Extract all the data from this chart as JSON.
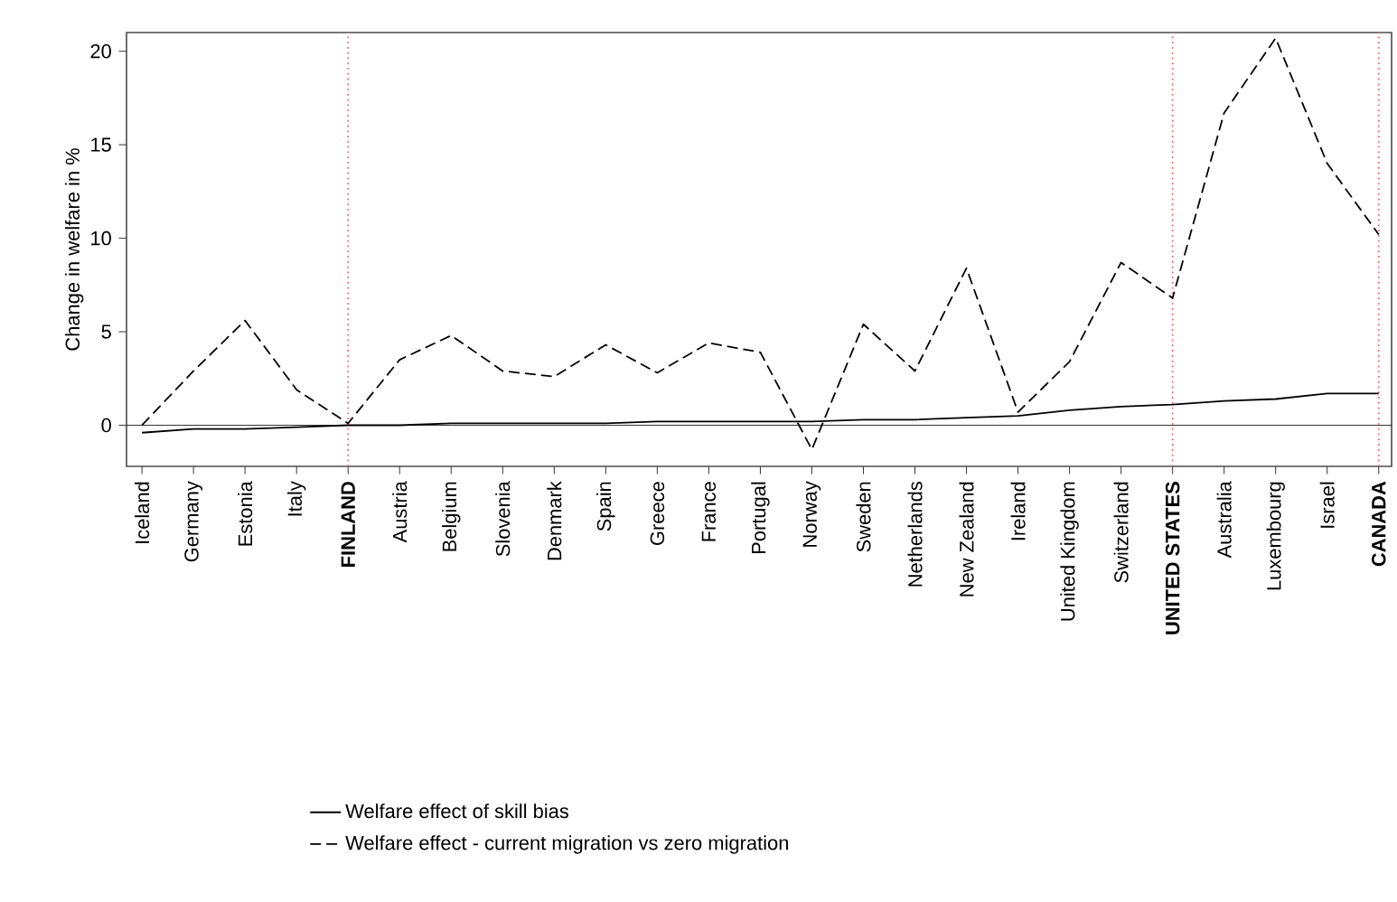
{
  "chart_data": {
    "type": "line",
    "ylabel": "Change in welfare in %",
    "categories": [
      "Iceland",
      "Germany",
      "Estonia",
      "Italy",
      "FINLAND",
      "Austria",
      "Belgium",
      "Slovenia",
      "Denmark",
      "Spain",
      "Greece",
      "France",
      "Portugal",
      "Norway",
      "Sweden",
      "Netherlands",
      "New Zealand",
      "Ireland",
      "United Kingdom",
      "Switzerland",
      "UNITED STATES",
      "Australia",
      "Luxembourg",
      "Israel",
      "CANADA"
    ],
    "series": [
      {
        "name": "Welfare effect of skill bias",
        "color": "#000000",
        "line_style": "solid",
        "values": [
          -0.4,
          -0.2,
          -0.2,
          -0.1,
          0,
          0,
          0.1,
          0.1,
          0.1,
          0.1,
          0.2,
          0.2,
          0.2,
          0.2,
          0.3,
          0.3,
          0.4,
          0.5,
          0.8,
          1.0,
          1.1,
          1.3,
          1.4,
          1.7,
          1.7
        ]
      },
      {
        "name": "Welfare effect - current migration vs zero migration",
        "color": "#000000",
        "line_style": "dashed",
        "values": [
          0,
          2.9,
          5.6,
          1.9,
          0.1,
          3.5,
          4.8,
          2.9,
          2.6,
          4.3,
          2.8,
          4.4,
          3.9,
          -1.3,
          5.4,
          2.9,
          8.4,
          0.7,
          3.4,
          8.7,
          6.8,
          16.7,
          20.7,
          14,
          10.2
        ]
      }
    ],
    "ylim": [
      -2.2,
      21
    ],
    "yticks": [
      0,
      5,
      10,
      15,
      20
    ],
    "grid": false,
    "legend": "bottom",
    "marker": "none",
    "ref_lines": [
      {
        "axis": "y",
        "value": 0,
        "color": "#000000",
        "line_style": "solid"
      },
      {
        "axis": "x",
        "value": "FINLAND",
        "color": "#ff6666",
        "line_style": "dotted"
      },
      {
        "axis": "x",
        "value": "UNITED STATES",
        "color": "#ff6666",
        "line_style": "dotted"
      },
      {
        "axis": "x",
        "value": "CANADA",
        "color": "#ff6666",
        "line_style": "dotted"
      }
    ]
  }
}
